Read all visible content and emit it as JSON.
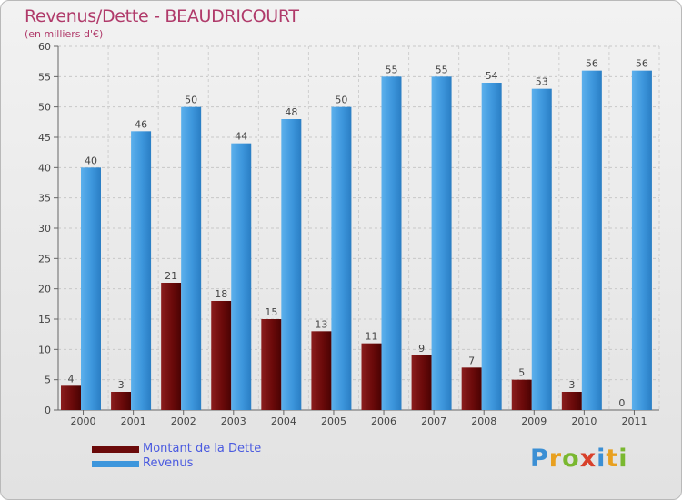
{
  "header": {
    "title": "Revenus/Dette - BEAUDRICOURT",
    "subtitle": "(en milliers d'€)"
  },
  "legend": {
    "items": [
      {
        "label": "Montant de la Dette",
        "color": "#6b0a0a"
      },
      {
        "label": "Revenus",
        "color": "#3d96dc"
      }
    ]
  },
  "logo": {
    "text": "Proxiti",
    "letter_colors": [
      "#3b8fd4",
      "#e8a020",
      "#7ab830",
      "#d8402a",
      "#3b8fd4",
      "#e8a020",
      "#7ab830"
    ]
  },
  "chart_data": {
    "type": "bar",
    "title": "Revenus/Dette - BEAUDRICOURT",
    "subtitle": "(en milliers d'€)",
    "categories": [
      "2000",
      "2001",
      "2002",
      "2003",
      "2004",
      "2005",
      "2006",
      "2007",
      "2008",
      "2009",
      "2010",
      "2011"
    ],
    "series": [
      {
        "name": "Montant de la Dette",
        "values": [
          4,
          3,
          21,
          18,
          15,
          13,
          11,
          9,
          7,
          5,
          3,
          0
        ],
        "color": "#6b0a0a"
      },
      {
        "name": "Revenus",
        "values": [
          40,
          46,
          50,
          44,
          48,
          50,
          55,
          55,
          54,
          53,
          56,
          56
        ],
        "color": "#3d96dc"
      }
    ],
    "ylim": [
      0,
      60
    ],
    "yticks": [
      0,
      5,
      10,
      15,
      20,
      25,
      30,
      35,
      40,
      45,
      50,
      55,
      60
    ],
    "grid": true,
    "legend_position": "bottom-left"
  }
}
